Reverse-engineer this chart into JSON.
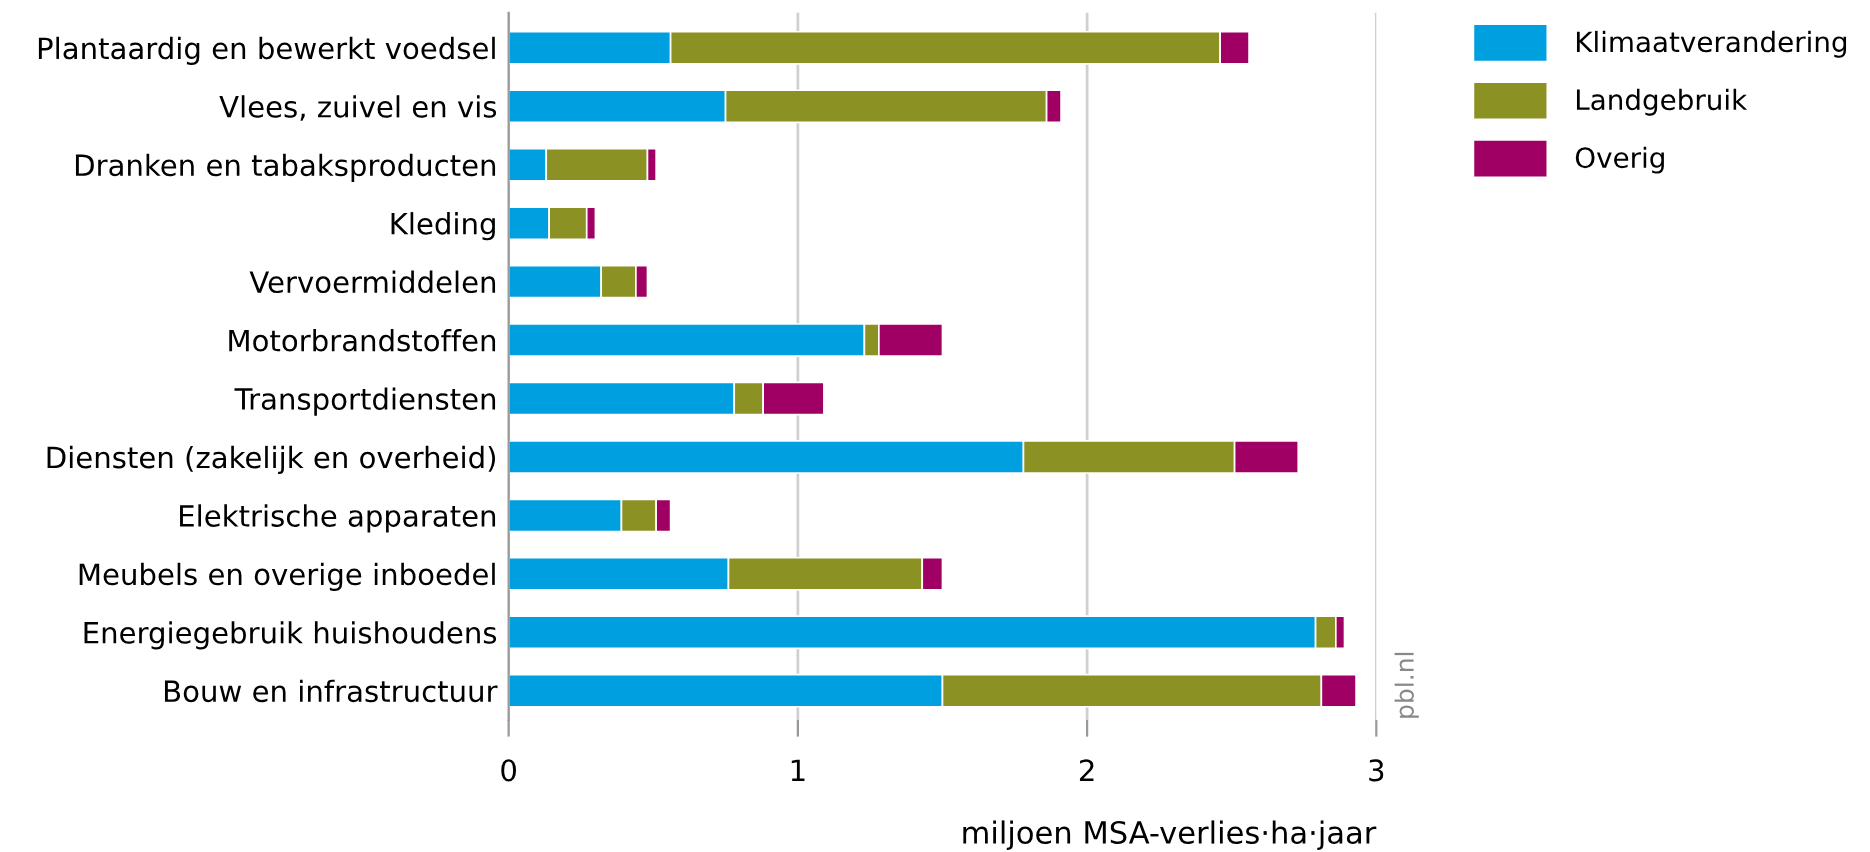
{
  "chart_data": {
    "type": "bar",
    "orientation": "horizontal",
    "stacked": true,
    "categories": [
      "Plantaardig en bewerkt voedsel",
      "Vlees, zuivel en vis",
      "Dranken en tabaksproducten",
      "Kleding",
      "Vervoermiddelen",
      "Motorbrandstoffen",
      "Transportdiensten",
      "Diensten (zakelijk en overheid)",
      "Elektrische apparaten",
      "Meubels en overige inboedel",
      "Energiegebruik huishoudens",
      "Bouw en infrastructuur"
    ],
    "series": [
      {
        "name": "Klimaatverandering",
        "color": "#009fe0",
        "values": [
          0.56,
          0.75,
          0.13,
          0.14,
          0.32,
          1.23,
          0.78,
          1.78,
          0.39,
          0.76,
          2.79,
          1.5
        ]
      },
      {
        "name": "Landgebruik",
        "color": "#8c9123",
        "values": [
          1.9,
          1.11,
          0.35,
          0.13,
          0.12,
          0.05,
          0.1,
          0.73,
          0.12,
          0.67,
          0.07,
          1.31
        ]
      },
      {
        "name": "Overig",
        "color": "#a00064",
        "values": [
          0.1,
          0.05,
          0.03,
          0.03,
          0.04,
          0.22,
          0.21,
          0.22,
          0.05,
          0.07,
          0.03,
          0.12
        ]
      }
    ],
    "xlim": [
      0,
      3
    ],
    "xticks": [
      0,
      1,
      2,
      3
    ],
    "xlabel": "miljoen MSA-verlies·ha·jaar",
    "grid": "x",
    "legend": "top right",
    "annotations": [
      "pbl.nl"
    ]
  }
}
